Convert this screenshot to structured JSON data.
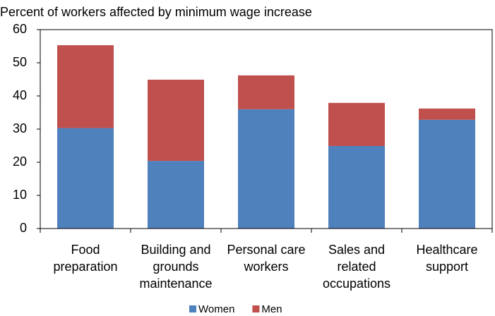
{
  "chart_data": {
    "type": "stacked_bar",
    "title": "Percent of workers affected by minimum wage increase",
    "categories": [
      "Food\npreparation",
      "Building and\ngrounds\nmaintenance",
      "Personal care\nworkers",
      "Sales and\nrelated\noccupations",
      "Healthcare\nsupport"
    ],
    "series": [
      {
        "name": "Women",
        "color": "#4f81bd",
        "values": [
          30.3,
          20.4,
          36.0,
          24.9,
          32.8
        ]
      },
      {
        "name": "Men",
        "color": "#c0504d",
        "values": [
          25.0,
          24.5,
          10.2,
          13.0,
          3.4
        ]
      }
    ],
    "ylim": [
      0,
      60
    ],
    "yticks": [
      0,
      10,
      20,
      30,
      40,
      50,
      60
    ],
    "grid": false,
    "legend": "bottom"
  }
}
